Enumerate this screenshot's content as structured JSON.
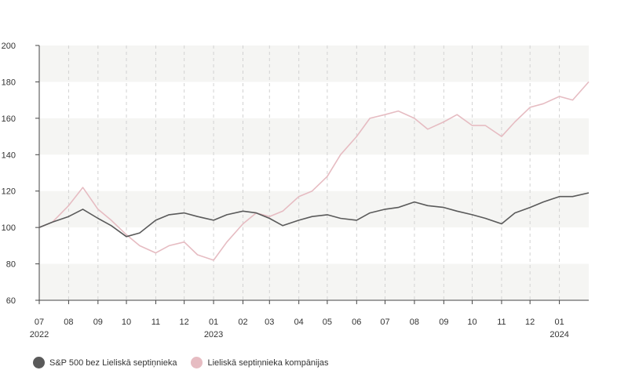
{
  "chart_data": {
    "type": "line",
    "title": "",
    "xlabel": "",
    "ylabel": "",
    "ylim": [
      60,
      200
    ],
    "yticks": [
      60,
      80,
      100,
      120,
      140,
      160,
      180,
      200
    ],
    "x_start": "2022-07",
    "x_end": "2024-02",
    "x_tick_labels": [
      "07",
      "08",
      "09",
      "10",
      "11",
      "12",
      "01",
      "02",
      "03",
      "04",
      "05",
      "06",
      "07",
      "08",
      "09",
      "10",
      "11",
      "12",
      "01"
    ],
    "x_year_labels": [
      {
        "month": "2022-07",
        "label": "2022"
      },
      {
        "month": "2023-01",
        "label": "2023"
      },
      {
        "month": "2024-01",
        "label": "2024"
      }
    ],
    "grid": "alternating horizontal bands, dashed vertical month lines",
    "legend_position": "bottom-left",
    "series": [
      {
        "name": "S&P 500 bez Lieliskā septiņnieka",
        "color": "#5a5a5a",
        "x": [
          "2022-07-01",
          "2022-07-15",
          "2022-08-01",
          "2022-08-16",
          "2022-09-01",
          "2022-09-15",
          "2022-10-01",
          "2022-10-15",
          "2022-11-01",
          "2022-11-15",
          "2022-12-01",
          "2022-12-15",
          "2023-01-01",
          "2023-01-15",
          "2023-02-01",
          "2023-02-15",
          "2023-03-01",
          "2023-03-15",
          "2023-04-01",
          "2023-04-15",
          "2023-05-01",
          "2023-05-15",
          "2023-06-01",
          "2023-06-15",
          "2023-07-01",
          "2023-07-15",
          "2023-08-01",
          "2023-08-15",
          "2023-09-01",
          "2023-09-15",
          "2023-10-01",
          "2023-10-15",
          "2023-11-01",
          "2023-11-15",
          "2023-12-01",
          "2023-12-15",
          "2024-01-01",
          "2024-01-15",
          "2024-02-01"
        ],
        "values": [
          100,
          103,
          106,
          110,
          105,
          101,
          95,
          97,
          104,
          107,
          108,
          106,
          104,
          107,
          109,
          108,
          105,
          101,
          104,
          106,
          107,
          105,
          104,
          108,
          110,
          111,
          114,
          112,
          111,
          109,
          107,
          105,
          102,
          108,
          111,
          114,
          117,
          117,
          119
        ]
      },
      {
        "name": "Lieliskā septiņnieka kompānijas",
        "color": "#e6bcc2",
        "x": [
          "2022-07-01",
          "2022-07-15",
          "2022-08-01",
          "2022-08-16",
          "2022-09-01",
          "2022-09-15",
          "2022-10-01",
          "2022-10-15",
          "2022-11-01",
          "2022-11-15",
          "2022-12-01",
          "2022-12-15",
          "2023-01-01",
          "2023-01-15",
          "2023-02-01",
          "2023-02-15",
          "2023-03-01",
          "2023-03-15",
          "2023-04-01",
          "2023-04-15",
          "2023-05-01",
          "2023-05-15",
          "2023-06-01",
          "2023-06-15",
          "2023-07-01",
          "2023-07-15",
          "2023-08-01",
          "2023-08-15",
          "2023-09-01",
          "2023-09-15",
          "2023-10-01",
          "2023-10-15",
          "2023-11-01",
          "2023-11-15",
          "2023-12-01",
          "2023-12-15",
          "2024-01-01",
          "2024-01-15",
          "2024-02-01"
        ],
        "values": [
          100,
          103,
          112,
          122,
          110,
          104,
          96,
          90,
          86,
          90,
          92,
          85,
          82,
          92,
          102,
          108,
          106,
          109,
          117,
          120,
          128,
          140,
          150,
          160,
          162,
          164,
          160,
          154,
          158,
          162,
          156,
          156,
          150,
          158,
          166,
          168,
          172,
          170,
          180
        ]
      }
    ]
  }
}
